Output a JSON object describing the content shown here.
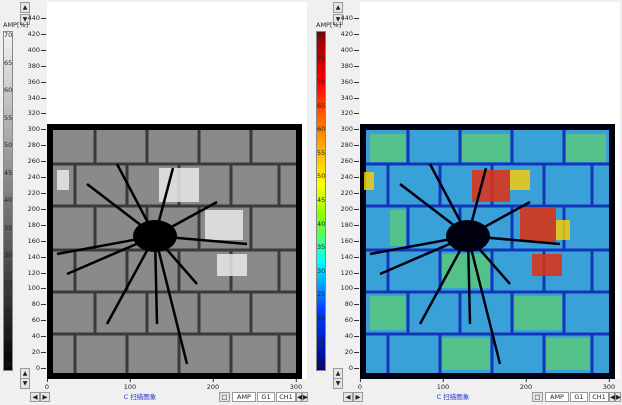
{
  "panels": [
    {
      "id": "left",
      "colorbar_title": "AMP[%]",
      "colorbar_ticks": [
        "70",
        "65",
        "60",
        "55",
        "50",
        "45",
        "40",
        "35",
        "30",
        "25",
        "20",
        "15",
        "10"
      ],
      "colorbar_style": "grayscale",
      "y_ticks": [
        "440",
        "420",
        "400",
        "380",
        "360",
        "340",
        "320",
        "300",
        "280",
        "260",
        "240",
        "220",
        "200",
        "180",
        "160",
        "140",
        "120",
        "100",
        "80",
        "60",
        "40",
        "20",
        "0"
      ],
      "x_ticks": [
        "0",
        "100",
        "200",
        "300"
      ],
      "caption": "C 扫描图象",
      "status_amp": "AMP",
      "status_gate": "G1",
      "status_channel": "CH1",
      "button_icon_label": "□",
      "image": "grayscale C-scan of tiled panel with central impact crack"
    },
    {
      "id": "right",
      "colorbar_title": "AMP[%]",
      "colorbar_ticks": [
        "80",
        "75",
        "70",
        "65",
        "60",
        "55",
        "50",
        "45",
        "40",
        "35",
        "30",
        "25",
        "20",
        "15",
        "10"
      ],
      "colorbar_style": "jet",
      "y_ticks": [
        "440",
        "420",
        "400",
        "380",
        "360",
        "340",
        "320",
        "300",
        "280",
        "260",
        "240",
        "220",
        "200",
        "180",
        "160",
        "140",
        "120",
        "100",
        "80",
        "60",
        "40",
        "20",
        "0"
      ],
      "x_ticks": [
        "0",
        "100",
        "200",
        "300"
      ],
      "caption": "C 扫描图象",
      "status_amp": "AMP",
      "status_gate": "G1",
      "status_channel": "CH1",
      "button_icon_label": "□",
      "image": "jet-colored C-scan of tiled panel with central impact crack"
    }
  ]
}
